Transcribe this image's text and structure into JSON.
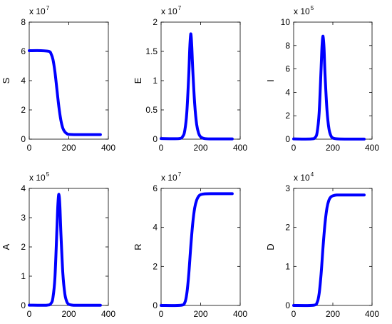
{
  "figure": {
    "title": ""
  },
  "chart_data": [
    {
      "type": "line",
      "ylabel": "S",
      "xlim": [
        0,
        400
      ],
      "ylim": [
        0,
        8
      ],
      "xticks": [
        "0",
        "200",
        "400"
      ],
      "yticks": [
        "0",
        "2",
        "4",
        "6",
        "8"
      ],
      "multiplier": {
        "base": "x 10",
        "exp": "7"
      },
      "color": "#0000ff",
      "x": [
        0,
        60,
        100,
        110,
        120,
        130,
        140,
        150,
        160,
        170,
        180,
        190,
        200,
        240,
        300,
        360
      ],
      "y": [
        6.05,
        6.05,
        6.0,
        5.85,
        5.45,
        4.6,
        3.4,
        2.2,
        1.3,
        0.75,
        0.5,
        0.38,
        0.33,
        0.31,
        0.31,
        0.31
      ]
    },
    {
      "type": "line",
      "ylabel": "E",
      "xlim": [
        0,
        400
      ],
      "ylim": [
        0,
        2
      ],
      "xticks": [
        "0",
        "200",
        "400"
      ],
      "yticks": [
        "0",
        "0.5",
        "1",
        "1.5",
        "2"
      ],
      "multiplier": {
        "base": "x 10",
        "exp": "7"
      },
      "color": "#0000ff",
      "x": [
        0,
        90,
        110,
        120,
        130,
        140,
        145,
        150,
        155,
        160,
        170,
        180,
        190,
        200,
        220,
        260,
        360
      ],
      "y": [
        0.01,
        0.01,
        0.05,
        0.15,
        0.45,
        1.1,
        1.55,
        1.8,
        1.6,
        1.2,
        0.6,
        0.25,
        0.1,
        0.04,
        0.01,
        0.005,
        0.005
      ]
    },
    {
      "type": "line",
      "ylabel": "I",
      "xlim": [
        0,
        400
      ],
      "ylim": [
        0,
        10
      ],
      "xticks": [
        "0",
        "200",
        "400"
      ],
      "yticks": [
        "0",
        "2",
        "4",
        "6",
        "8",
        "10"
      ],
      "multiplier": {
        "base": "x 10",
        "exp": "5"
      },
      "color": "#0000ff",
      "x": [
        0,
        90,
        110,
        120,
        130,
        140,
        145,
        150,
        155,
        160,
        170,
        180,
        190,
        200,
        220,
        260,
        360
      ],
      "y": [
        0.02,
        0.02,
        0.15,
        0.6,
        2.2,
        6.0,
        8.0,
        8.8,
        7.8,
        5.6,
        2.5,
        0.9,
        0.3,
        0.1,
        0.03,
        0.01,
        0.01
      ]
    },
    {
      "type": "line",
      "ylabel": "A",
      "xlim": [
        0,
        400
      ],
      "ylim": [
        0,
        4
      ],
      "xticks": [
        "0",
        "200",
        "400"
      ],
      "yticks": [
        "0",
        "1",
        "2",
        "3",
        "4"
      ],
      "multiplier": {
        "base": "x 10",
        "exp": "5"
      },
      "color": "#0000ff",
      "x": [
        0,
        90,
        110,
        120,
        130,
        140,
        145,
        150,
        155,
        160,
        170,
        180,
        190,
        200,
        220,
        260,
        360
      ],
      "y": [
        0.01,
        0.01,
        0.07,
        0.27,
        0.95,
        2.6,
        3.45,
        3.8,
        3.4,
        2.5,
        1.1,
        0.4,
        0.13,
        0.04,
        0.01,
        0.005,
        0.005
      ]
    },
    {
      "type": "line",
      "ylabel": "R",
      "xlim": [
        0,
        400
      ],
      "ylim": [
        0,
        6
      ],
      "xticks": [
        "0",
        "200",
        "400"
      ],
      "yticks": [
        "0",
        "2",
        "4",
        "6"
      ],
      "multiplier": {
        "base": "x 10",
        "exp": "7"
      },
      "color": "#0000ff",
      "x": [
        0,
        100,
        120,
        130,
        140,
        150,
        160,
        170,
        180,
        190,
        200,
        220,
        260,
        300,
        360
      ],
      "y": [
        0,
        0.01,
        0.15,
        0.6,
        1.6,
        3.0,
        4.2,
        5.0,
        5.4,
        5.6,
        5.68,
        5.72,
        5.73,
        5.73,
        5.73
      ]
    },
    {
      "type": "line",
      "ylabel": "D",
      "xlim": [
        0,
        400
      ],
      "ylim": [
        0,
        3
      ],
      "xticks": [
        "0",
        "200",
        "400"
      ],
      "yticks": [
        "0",
        "1",
        "2",
        "3"
      ],
      "multiplier": {
        "base": "x 10",
        "exp": "4"
      },
      "color": "#0000ff",
      "x": [
        0,
        100,
        120,
        130,
        140,
        150,
        160,
        170,
        180,
        190,
        200,
        220,
        260,
        300,
        360
      ],
      "y": [
        0,
        0.005,
        0.08,
        0.3,
        0.8,
        1.5,
        2.1,
        2.5,
        2.7,
        2.78,
        2.81,
        2.83,
        2.83,
        2.83,
        2.83
      ]
    }
  ]
}
